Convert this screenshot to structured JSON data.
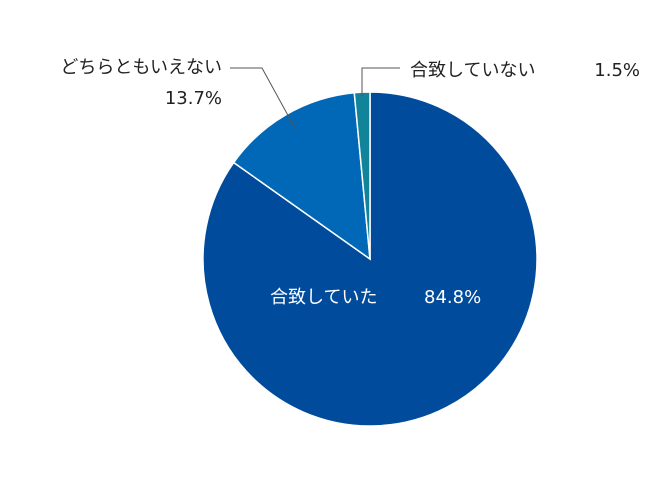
{
  "chart_data": {
    "type": "pie",
    "categories": [
      "合致していた",
      "どちらともいえない",
      "合致していない"
    ],
    "values": [
      84.8,
      13.7,
      1.5
    ],
    "value_labels": [
      "84.8%",
      "13.7%",
      "1.5%"
    ],
    "colors": [
      "#004b9b",
      "#0068b7",
      "#12849a"
    ]
  }
}
